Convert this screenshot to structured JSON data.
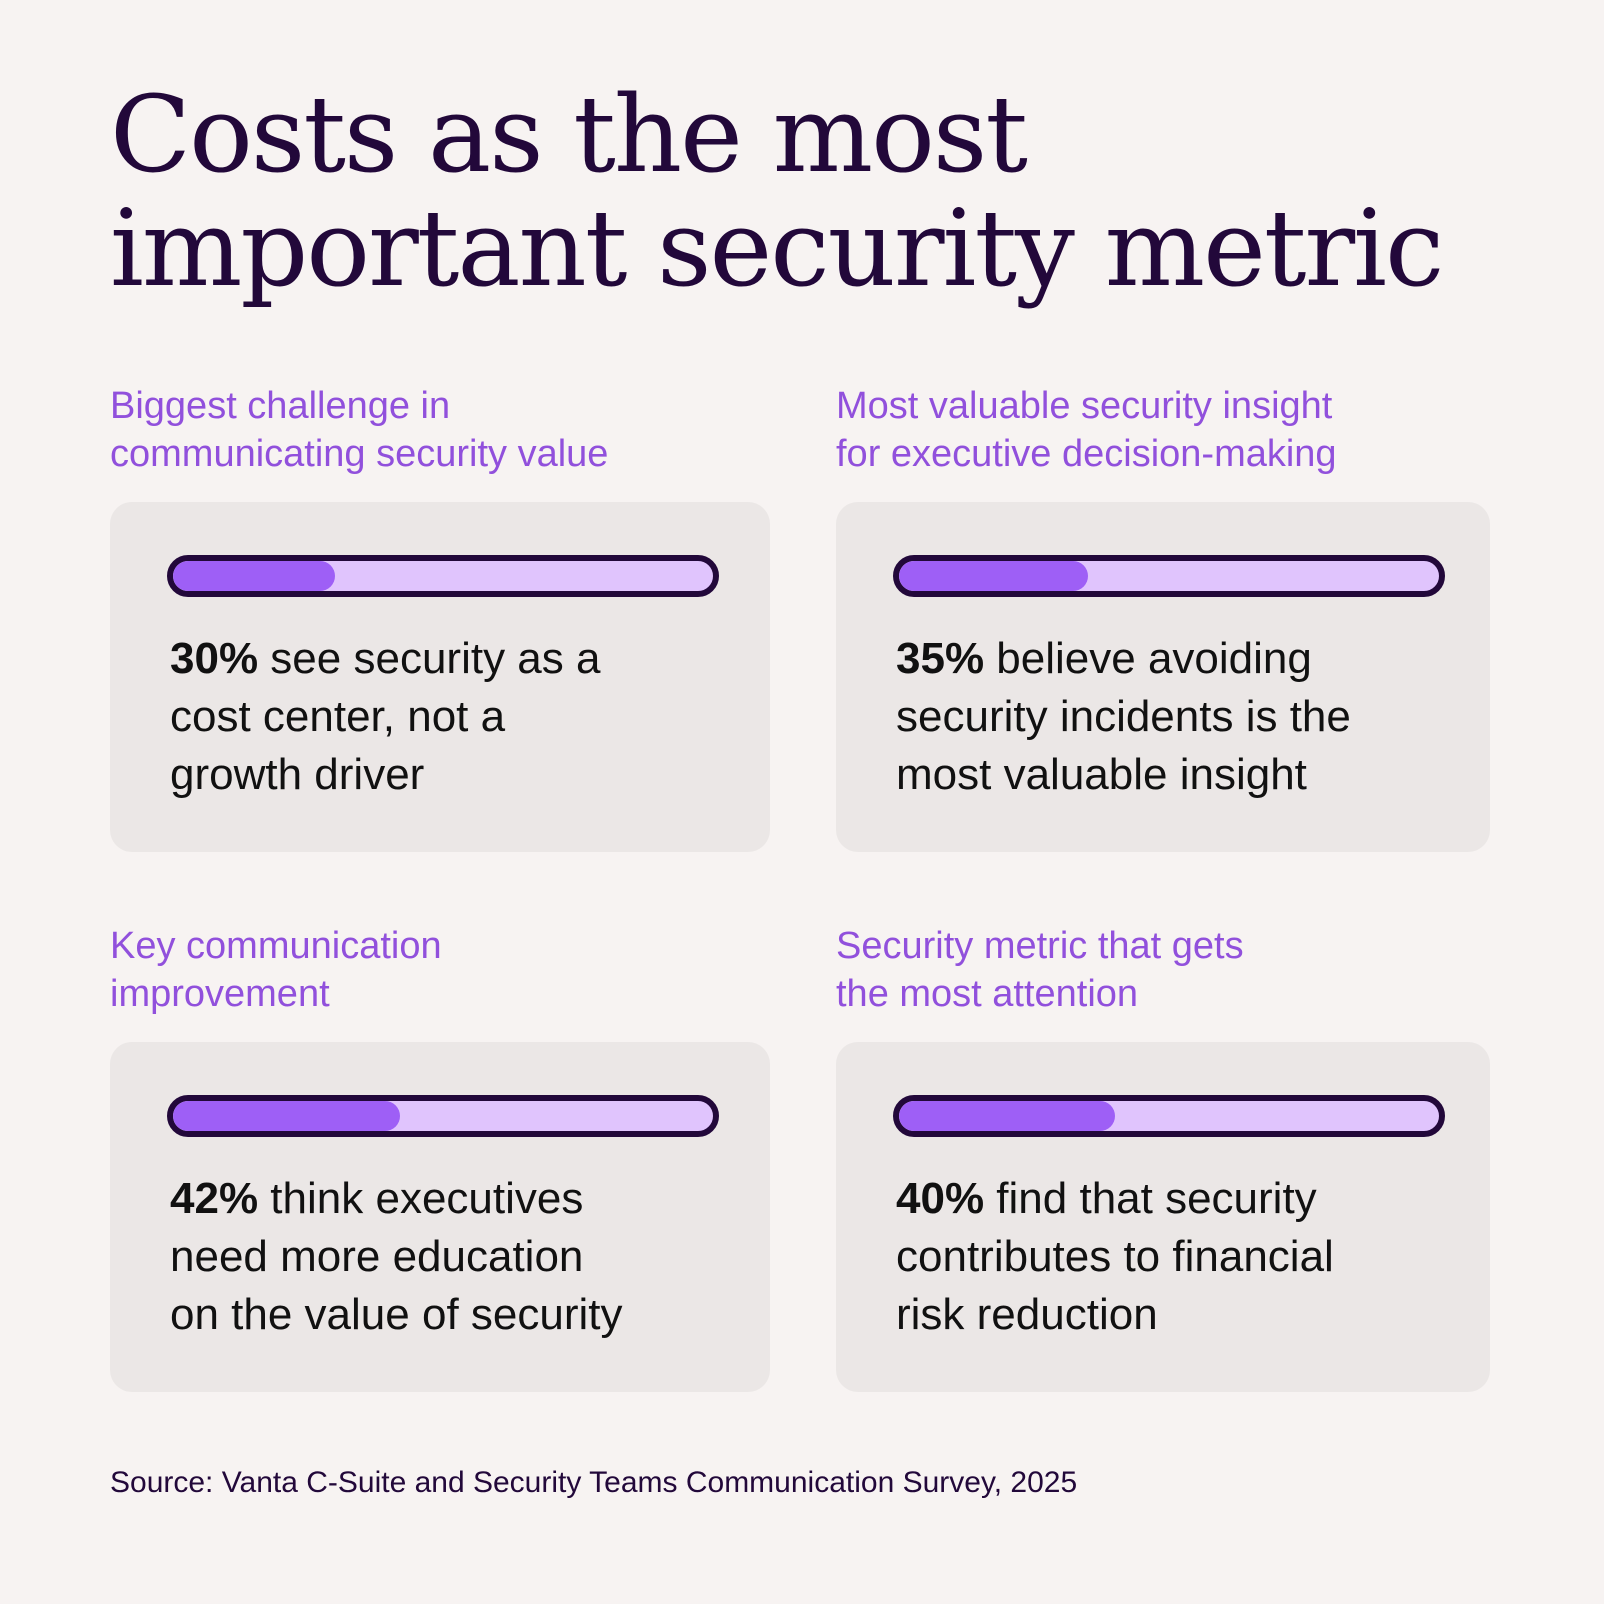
{
  "title": [
    "Costs as the most",
    "important security metric"
  ],
  "colors": {
    "background": "#f7f3f2",
    "card": "#ebe7e6",
    "title": "#22083a",
    "subheading": "#9150dc",
    "bar_fill": "#9e5ff6",
    "bar_track": "#e0c4fd",
    "bar_border": "#22083a"
  },
  "panels": [
    {
      "heading": [
        "Biggest challenge in",
        "communicating security value"
      ],
      "percent": 30,
      "pct": "30%",
      "lines": [
        " see security as a",
        "cost center, not a",
        "growth driver"
      ]
    },
    {
      "heading": [
        "Most valuable security insight",
        "for executive decision-making"
      ],
      "percent": 35,
      "pct": "35%",
      "lines": [
        " believe avoiding",
        "security incidents is the",
        "most valuable insight"
      ]
    },
    {
      "heading": [
        "Key communication",
        "improvement"
      ],
      "percent": 42,
      "pct": "42%",
      "lines": [
        " think executives",
        "need more education",
        "on the value of security"
      ]
    },
    {
      "heading": [
        "Security metric that gets",
        "the most attention"
      ],
      "percent": 40,
      "pct": "40%",
      "lines": [
        " find that security",
        "contributes to financial",
        "risk reduction"
      ]
    }
  ],
  "source": "Source: Vanta C-Suite and Security Teams Communication Survey, 2025"
}
